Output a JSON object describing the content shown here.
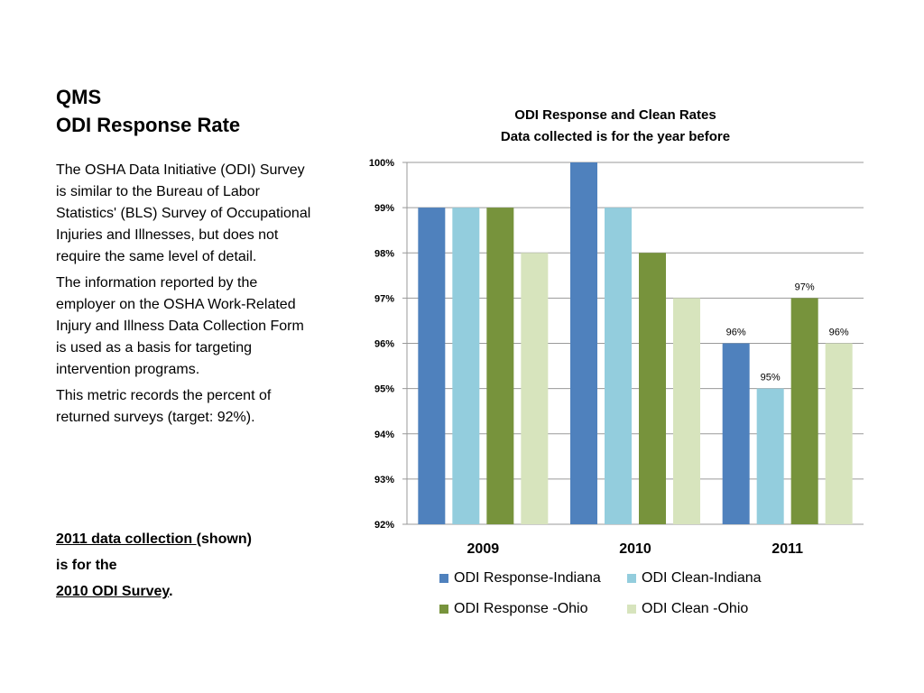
{
  "slide": {
    "title_line1": "QMS",
    "title_line2": "ODI Response Rate",
    "paragraphs": [
      "The OSHA Data Initiative (ODI) Survey is similar to the Bureau of Labor Statistics' (BLS) Survey of Occupational Injuries and Illnesses, but does not require the same level of detail.",
      " The information reported by the employer on the OSHA Work-Related Injury and Illness Data Collection Form is used as a basis for targeting intervention programs.",
      "This metric records the percent of returned surveys (target: 92%)."
    ],
    "footnote": {
      "line1_underlined": "2011 data collection ",
      "line1_rest": "(shown)",
      "line2": "is for the",
      "line3_underlined": "2010 ODI Survey",
      "line3_rest": "."
    }
  },
  "chart_data": {
    "type": "bar",
    "title": "ODI Response and Clean Rates",
    "subtitle": "Data collected is for the year before",
    "categories": [
      "2009",
      "2010",
      "2011"
    ],
    "ylim": [
      92,
      100
    ],
    "y_ticks": [
      "92%",
      "93%",
      "94%",
      "95%",
      "96%",
      "97%",
      "98%",
      "99%",
      "100%"
    ],
    "grid": true,
    "legend_position": "bottom",
    "series": [
      {
        "name": "ODI Response-Indiana",
        "color": "#4f81bd",
        "values": [
          99,
          100,
          96
        ],
        "labels": [
          "",
          "",
          "96%"
        ]
      },
      {
        "name": "ODI Clean-Indiana",
        "color": "#93cddd",
        "values": [
          99,
          99,
          95
        ],
        "labels": [
          "",
          "",
          "95%"
        ]
      },
      {
        "name": "ODI Response -Ohio",
        "color": "#77933c",
        "values": [
          99,
          98,
          97
        ],
        "labels": [
          "",
          "",
          "97%"
        ]
      },
      {
        "name": "ODI Clean -Ohio",
        "color": "#d7e4bd",
        "values": [
          98,
          97,
          96
        ],
        "labels": [
          "",
          "",
          "96%"
        ]
      }
    ]
  }
}
